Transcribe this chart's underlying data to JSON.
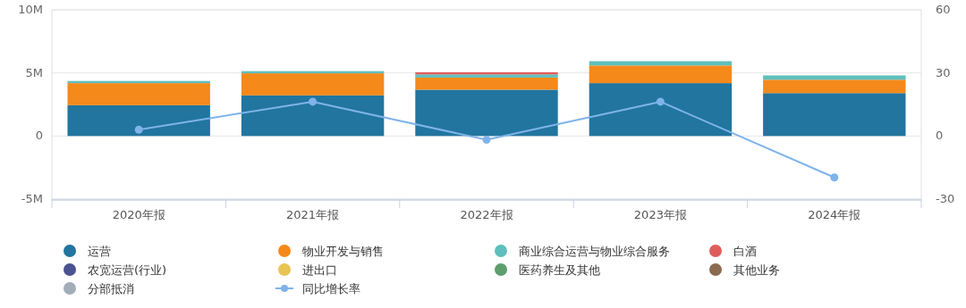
{
  "chart_data": {
    "type": "bar",
    "stacked": true,
    "categories": [
      "2020年报",
      "2021年报",
      "2022年报",
      "2023年报",
      "2024年报"
    ],
    "ylim": [
      -5,
      10
    ],
    "yticks": [
      {
        "value": 10,
        "label": "10M"
      },
      {
        "value": 5,
        "label": "5M"
      },
      0,
      {
        "value": -5,
        "label": "-5M"
      }
    ],
    "y2lim": [
      -30,
      60
    ],
    "y2ticks": [
      60,
      30,
      0,
      -30
    ],
    "grid": "y",
    "legend": "bottom",
    "marker": "circle",
    "series": [
      {
        "name": "运营",
        "color": "#21759f",
        "values": [
          2.44,
          3.22,
          3.67,
          4.19,
          3.4
        ]
      },
      {
        "name": "物业开发与销售",
        "color": "#f5891a",
        "values": [
          1.75,
          1.75,
          0.96,
          1.4,
          1.06
        ]
      },
      {
        "name": "商业综合运营与物业综合服务",
        "color": "#5ebfbd",
        "values": [
          0.17,
          0.17,
          0.25,
          0.34,
          0.34
        ]
      },
      {
        "name": "白酒",
        "color": "#e05c5c",
        "values": [
          null,
          null,
          0.17,
          null,
          null
        ]
      },
      {
        "name": "农宽运营(行业)",
        "color": "#4a5290",
        "values": [
          null,
          null,
          null,
          null,
          null
        ]
      },
      {
        "name": "进出口",
        "color": "#e8c454",
        "values": [
          null,
          null,
          null,
          null,
          null
        ]
      },
      {
        "name": "医药养生及其他",
        "color": "#5e9e6e",
        "values": [
          null,
          null,
          null,
          null,
          null
        ]
      },
      {
        "name": "其他业务",
        "color": "#8c6a4f",
        "values": [
          null,
          null,
          null,
          null,
          null
        ]
      },
      {
        "name": "分部抵消",
        "color": "#a2adb8",
        "values": [
          null,
          null,
          null,
          null,
          null
        ]
      },
      {
        "name": "同比增长率",
        "color": "#7fb3ea",
        "type": "line",
        "axis": "y2",
        "values": [
          3,
          16.3,
          -1.8,
          16.3,
          -19.7
        ]
      }
    ]
  }
}
